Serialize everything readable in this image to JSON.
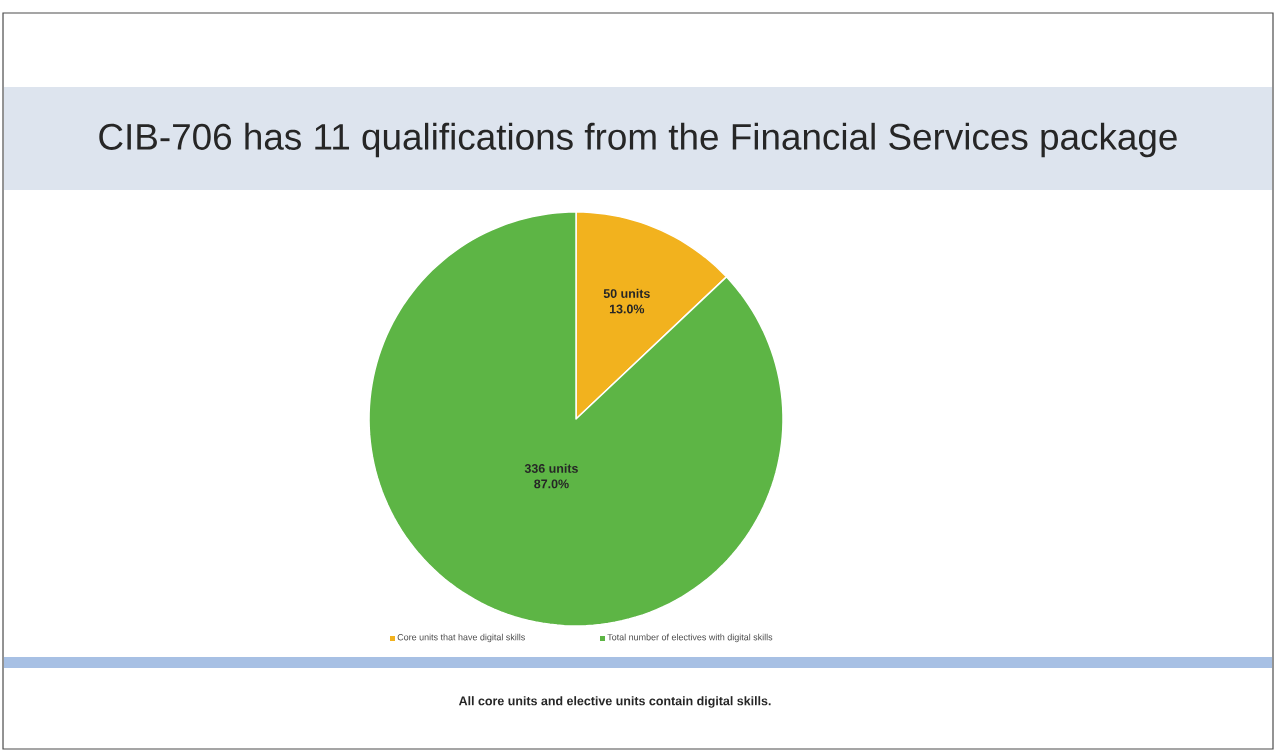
{
  "chart_data": {
    "type": "pie",
    "title": "CIB-706 has 11 qualifications from the Financial Services package",
    "categories": [
      "Core units that have digital skills",
      "Total number of electives with digital skills"
    ],
    "values": [
      50,
      336
    ],
    "colors": [
      "#f2b21e",
      "#5db545"
    ],
    "value_labels": [
      "50 units",
      "336 units"
    ],
    "legend": "bottom",
    "annotations": [
      {
        "text": "13.0%",
        "x": "Core units that have digital skills"
      },
      {
        "text": "87.0%",
        "x": "Total number of electives with digital skills"
      },
      "All core units and elective units contain digital skills."
    ]
  }
}
